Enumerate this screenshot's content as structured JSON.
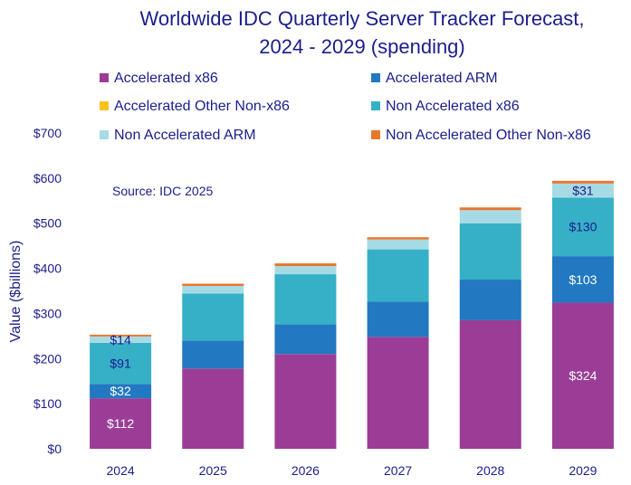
{
  "chart_data": {
    "type": "bar",
    "stacked": true,
    "title": "Worldwide IDC Quarterly Server Tracker Forecast,",
    "subtitle": "2024 - 2029 (spending)",
    "ylabel": "Value ($billions)",
    "xlabel": "",
    "ylim": [
      0,
      700
    ],
    "yticks": [
      "$0",
      "$100",
      "$200",
      "$300",
      "$400",
      "$500",
      "$600",
      "$700"
    ],
    "categories": [
      "2024",
      "2025",
      "2026",
      "2027",
      "2028",
      "2029"
    ],
    "annotation": "Source: IDC 2025",
    "grid": false,
    "legend_position": "top",
    "series": [
      {
        "name": "Accelerated x86",
        "color": "#9b3d96",
        "values": [
          112,
          178,
          210,
          248,
          285,
          324
        ]
      },
      {
        "name": "Accelerated ARM",
        "color": "#2278c1",
        "values": [
          32,
          62,
          66,
          78,
          90,
          103
        ]
      },
      {
        "name": "Accelerated Other Non-x86",
        "color": "#f8c21d",
        "values": [
          0,
          0,
          0,
          0,
          0,
          0
        ]
      },
      {
        "name": "Non Accelerated x86",
        "color": "#36b0c7",
        "values": [
          91,
          104,
          111,
          116,
          125,
          130
        ]
      },
      {
        "name": "Non Accelerated ARM",
        "color": "#a6dbe5",
        "values": [
          14,
          17,
          18,
          22,
          29,
          31
        ]
      },
      {
        "name": "Non Accelerated Other Non-x86",
        "color": "#e8772e",
        "values": [
          4,
          5,
          6,
          5,
          6,
          6
        ]
      }
    ],
    "data_labels": [
      {
        "category": "2024",
        "series": "Accelerated x86",
        "text": "$112",
        "color": "#ffffff"
      },
      {
        "category": "2024",
        "series": "Accelerated ARM",
        "text": "$32",
        "color": "#ffffff"
      },
      {
        "category": "2024",
        "series": "Non Accelerated x86",
        "text": "$91",
        "color": "#1b1d8c"
      },
      {
        "category": "2024",
        "series": "Non Accelerated ARM",
        "text": "$14",
        "color": "#1b1d8c"
      },
      {
        "category": "2029",
        "series": "Accelerated x86",
        "text": "$324",
        "color": "#ffffff"
      },
      {
        "category": "2029",
        "series": "Accelerated ARM",
        "text": "$103",
        "color": "#ffffff"
      },
      {
        "category": "2029",
        "series": "Non Accelerated x86",
        "text": "$130",
        "color": "#1b1d8c"
      },
      {
        "category": "2029",
        "series": "Non Accelerated ARM",
        "text": "$31",
        "color": "#1b1d8c"
      }
    ]
  }
}
